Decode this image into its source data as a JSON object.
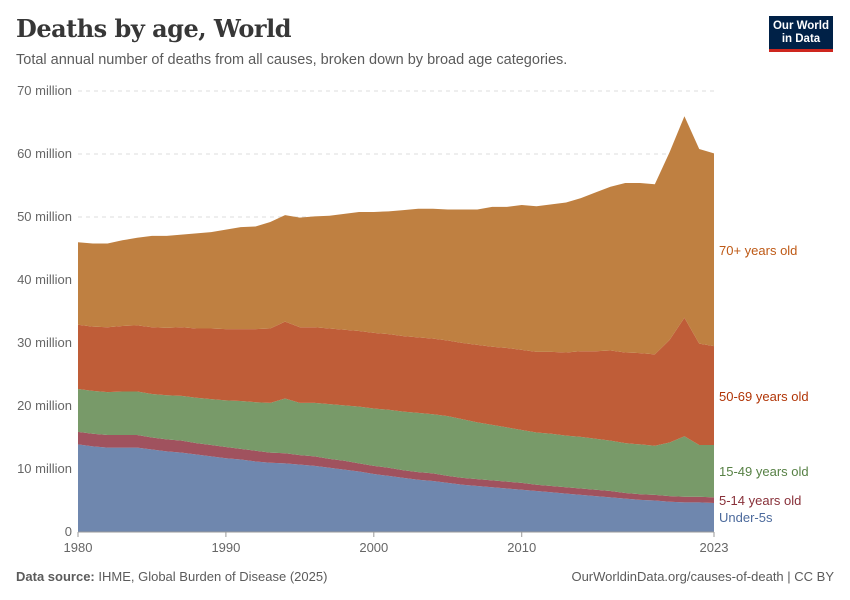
{
  "header": {
    "title": "Deaths by age, World",
    "subtitle": "Total annual number of deaths from all causes, broken down by broad age categories.",
    "logo_text": "Our World in Data"
  },
  "footer": {
    "source_label": "Data source:",
    "source": "IHME, Global Burden of Disease (2025)",
    "link": "OurWorldinData.org/causes-of-death | CC BY"
  },
  "chart_data": {
    "type": "area",
    "stacked": true,
    "title": "Deaths by age, World",
    "subtitle": "Total annual number of deaths from all causes, broken down by broad age categories.",
    "ylim": [
      0,
      70000000
    ],
    "y_ticks": [
      0,
      10000000,
      20000000,
      30000000,
      40000000,
      50000000,
      60000000,
      70000000
    ],
    "y_tick_labels": [
      "0",
      "10 million",
      "20 million",
      "30 million",
      "40 million",
      "50 million",
      "60 million",
      "70 million"
    ],
    "x_ticks": [
      1980,
      1990,
      2000,
      2010,
      2023
    ],
    "grid": "horizontal dashed",
    "legend": "right, inline labels",
    "x": [
      1980,
      1981,
      1982,
      1983,
      1984,
      1985,
      1986,
      1987,
      1988,
      1989,
      1990,
      1991,
      1992,
      1993,
      1994,
      1995,
      1996,
      1997,
      1998,
      1999,
      2000,
      2001,
      2002,
      2003,
      2004,
      2005,
      2006,
      2007,
      2008,
      2009,
      2010,
      2011,
      2012,
      2013,
      2014,
      2015,
      2016,
      2017,
      2018,
      2019,
      2020,
      2021,
      2022,
      2023
    ],
    "unit": "million deaths",
    "series": [
      {
        "name": "Under-5s",
        "color": "#6f87ae",
        "label_color": "#4c6a9c",
        "values": [
          13.9,
          13.6,
          13.4,
          13.4,
          13.4,
          13.1,
          12.8,
          12.6,
          12.3,
          12.0,
          11.7,
          11.5,
          11.2,
          11.0,
          10.9,
          10.7,
          10.5,
          10.2,
          9.9,
          9.6,
          9.2,
          8.9,
          8.6,
          8.3,
          8.1,
          7.8,
          7.5,
          7.3,
          7.1,
          6.9,
          6.7,
          6.5,
          6.3,
          6.1,
          5.9,
          5.7,
          5.5,
          5.3,
          5.1,
          5.0,
          4.8,
          4.7,
          4.7,
          4.6
        ]
      },
      {
        "name": "5-14 years old",
        "color": "#a0525e",
        "label_color": "#883039",
        "values": [
          2.0,
          2.0,
          2.0,
          2.0,
          2.0,
          1.9,
          1.9,
          1.9,
          1.8,
          1.8,
          1.8,
          1.7,
          1.7,
          1.6,
          1.6,
          1.5,
          1.5,
          1.4,
          1.4,
          1.3,
          1.3,
          1.3,
          1.2,
          1.2,
          1.2,
          1.1,
          1.1,
          1.1,
          1.1,
          1.1,
          1.1,
          1.0,
          1.0,
          1.0,
          1.0,
          1.0,
          1.0,
          0.9,
          0.9,
          0.9,
          0.9,
          0.9,
          0.9,
          0.9
        ]
      },
      {
        "name": "15-49 years old",
        "color": "#789a69",
        "label_color": "#578145",
        "values": [
          6.8,
          6.8,
          6.8,
          6.9,
          6.9,
          6.9,
          7.0,
          7.1,
          7.2,
          7.3,
          7.4,
          7.6,
          7.7,
          7.9,
          8.7,
          8.3,
          8.5,
          8.7,
          8.8,
          9.0,
          9.1,
          9.2,
          9.3,
          9.4,
          9.4,
          9.5,
          9.3,
          9.0,
          8.8,
          8.6,
          8.4,
          8.3,
          8.3,
          8.2,
          8.2,
          8.1,
          8.0,
          7.9,
          7.9,
          7.8,
          8.5,
          9.6,
          8.2,
          8.3
        ]
      },
      {
        "name": "50-69 years old",
        "color": "#bf5d38",
        "label_color": "#b13507",
        "values": [
          10.2,
          10.2,
          10.3,
          10.4,
          10.5,
          10.6,
          10.7,
          10.9,
          11.0,
          11.2,
          11.3,
          11.4,
          11.6,
          11.8,
          12.2,
          12.0,
          12.0,
          12.0,
          12.0,
          12.0,
          12.0,
          12.0,
          12.0,
          12.0,
          12.0,
          12.0,
          12.1,
          12.3,
          12.4,
          12.6,
          12.7,
          12.8,
          13.0,
          13.2,
          13.6,
          13.9,
          14.3,
          14.4,
          14.5,
          14.5,
          16.3,
          18.8,
          16.1,
          15.7
        ]
      },
      {
        "name": "70+ years old",
        "color": "#bf8041",
        "label_color": "#be5915",
        "values": [
          13.1,
          13.2,
          13.3,
          13.6,
          13.9,
          14.5,
          14.6,
          14.7,
          15.1,
          15.3,
          15.8,
          16.2,
          16.3,
          16.9,
          16.9,
          17.4,
          17.6,
          17.9,
          18.4,
          18.9,
          19.2,
          19.5,
          20.0,
          20.4,
          20.6,
          20.8,
          21.2,
          21.5,
          22.2,
          22.4,
          23.0,
          23.1,
          23.4,
          23.8,
          24.3,
          25.2,
          26.0,
          26.9,
          27.0,
          27.0,
          29.8,
          32.0,
          30.9,
          30.6
        ]
      }
    ]
  }
}
